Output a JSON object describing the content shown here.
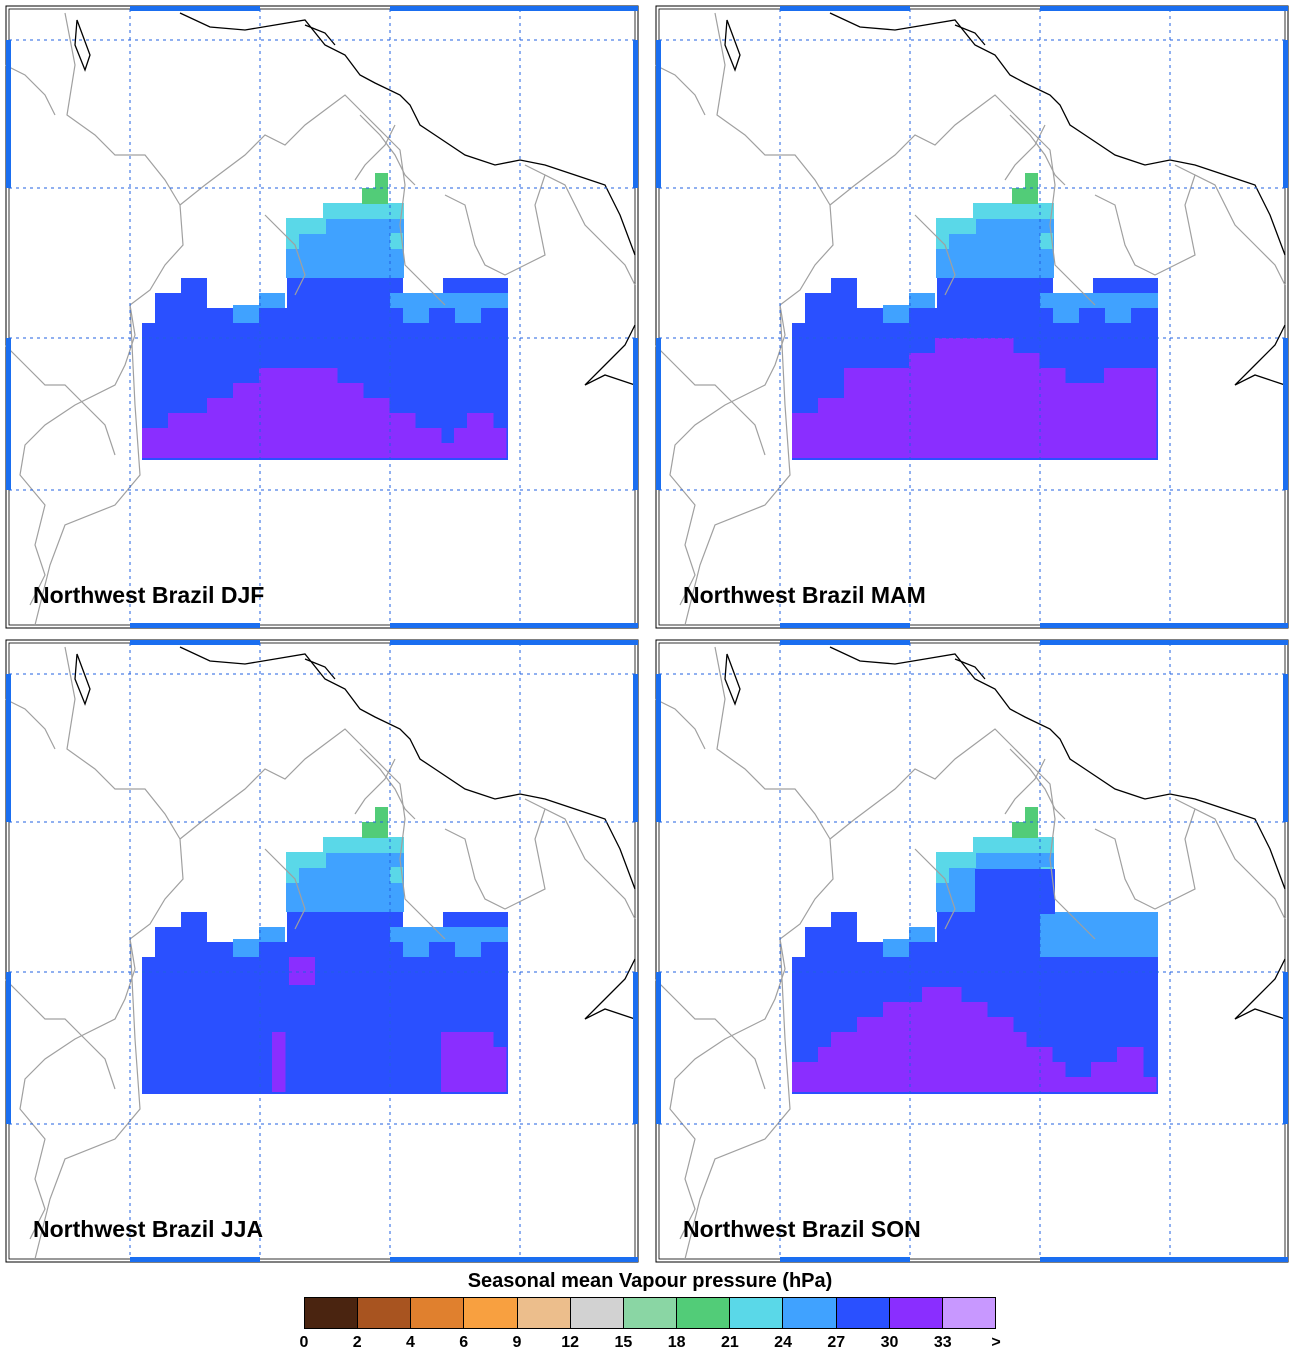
{
  "panels": [
    {
      "title": "Northwest Brazil DJF",
      "season": "DJF"
    },
    {
      "title": "Northwest Brazil MAM",
      "season": "MAM"
    },
    {
      "title": "Northwest Brazil JJA",
      "season": "JJA"
    },
    {
      "title": "Northwest Brazil SON",
      "season": "SON"
    }
  ],
  "legend": {
    "title": "Seasonal mean Vapour pressure (hPa)",
    "tick_labels": [
      "0",
      "2",
      "4",
      "6",
      "9",
      "12",
      "15",
      "18",
      "21",
      "24",
      "27",
      "30",
      "33",
      ">"
    ],
    "colors": [
      "#4a2410",
      "#a85420",
      "#e0802e",
      "#f8a040",
      "#ecbe8c",
      "#d2d2d2",
      "#8ad6a4",
      "#52cc78",
      "#5ad8e8",
      "#40a2ff",
      "#2a50ff",
      "#8a2eff",
      "#c898ff"
    ]
  },
  "map_colors": {
    "cyan_21_24": "#5ad8e8",
    "green_18_21": "#52cc78",
    "lightblue_24_27": "#40a2ff",
    "blue_27_30": "#2a50ff",
    "purple_30_33": "#8a2eff",
    "gridline": "#2060e0",
    "border_accent": "#1a6ef0",
    "coast": "#000000",
    "boundary": "#a0a0a0"
  }
}
